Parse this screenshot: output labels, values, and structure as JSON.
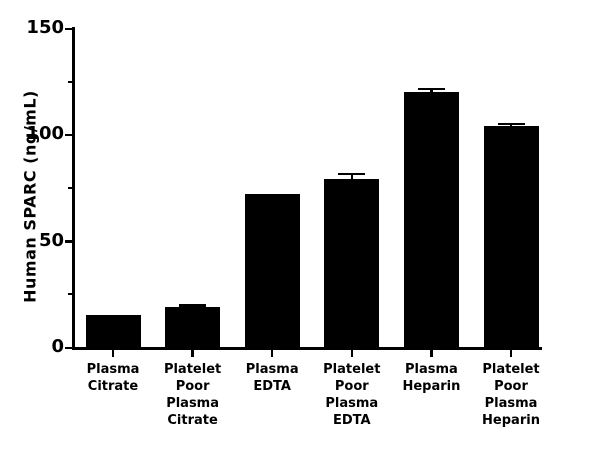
{
  "chart_data": {
    "type": "bar",
    "title": "",
    "xlabel": "",
    "ylabel": "Human SPARC (ng/mL)",
    "ylim": [
      0,
      150
    ],
    "yticks": [
      0,
      50,
      100,
      150
    ],
    "yticks_minor": [
      25,
      75,
      125
    ],
    "grid": false,
    "legend": "none",
    "bar_color": "#000000",
    "background_color": "#ffffff",
    "categories": [
      "Plasma\nCitrate",
      "Platelet\nPoor\nPlasma\nCitrate",
      "Plasma\nEDTA",
      "Platelet\nPoor\nPlasma\nEDTA",
      "Plasma\nHeparin",
      "Platelet\nPoor\nPlasma\nHeparin"
    ],
    "values": [
      15,
      19,
      72,
      79,
      120,
      104
    ],
    "errors_plus": [
      0,
      1,
      0,
      3,
      2,
      1.5
    ]
  }
}
